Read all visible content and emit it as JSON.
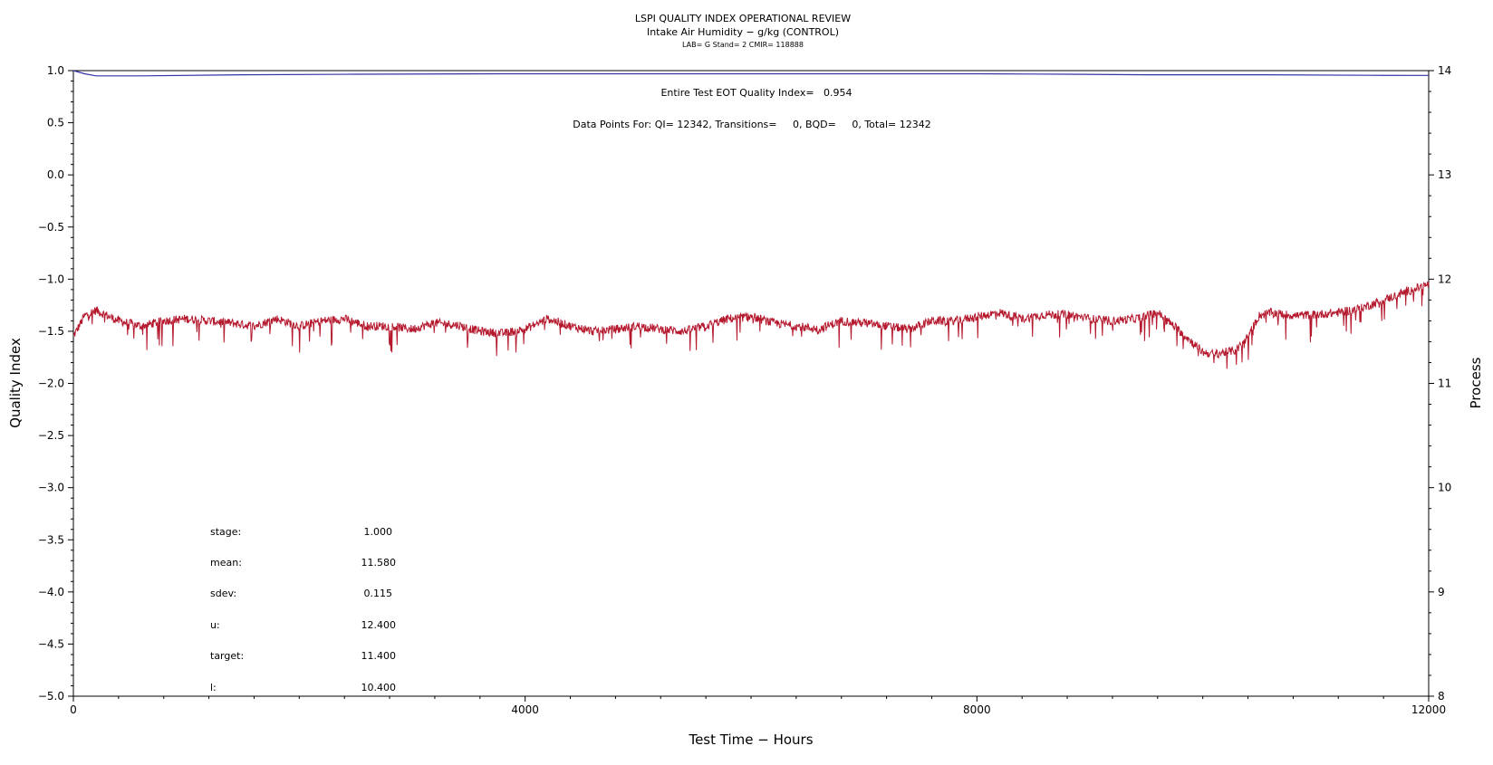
{
  "chart_data": {
    "type": "line",
    "title": "LSPI QUALITY INDEX OPERATIONAL REVIEW",
    "subtitle": "Intake Air Humidity − g/kg (CONTROL)",
    "subtitle2": "LAB= G Stand= 2 CMIR= 118888",
    "xlabel": "Test Time − Hours",
    "ylabel_left": "Quality Index",
    "ylabel_right": "Process",
    "xlim": [
      0,
      12000
    ],
    "ylim_left": [
      -5.0,
      1.0
    ],
    "ylim_right": [
      8,
      14
    ],
    "x_ticks": [
      "0",
      "4000",
      "8000",
      "12000"
    ],
    "y_ticks_left": [
      "1.0",
      "0.5",
      "0.0",
      "−0.5",
      "−1.0",
      "−1.5",
      "−2.0",
      "−2.5",
      "−3.0",
      "−3.5",
      "−4.0",
      "−4.5",
      "−5.0"
    ],
    "y_ticks_right": [
      "14",
      "13",
      "12",
      "11",
      "10",
      "9",
      "8"
    ],
    "annotation_qi": "Entire Test EOT Quality Index=   0.954",
    "annotation_points": "Data Points For: QI= 12342, Transitions=     0, BQD=     0, Total= 12342",
    "stats": [
      {
        "label": "stage:",
        "value": "1.000"
      },
      {
        "label": "mean:",
        "value": "11.580"
      },
      {
        "label": "sdev:",
        "value": "0.115"
      },
      {
        "label": "u:",
        "value": "12.400"
      },
      {
        "label": "target:",
        "value": "11.400"
      },
      {
        "label": "l:",
        "value": "10.400"
      }
    ],
    "series": [
      {
        "axis": "left",
        "color": "#3333aa",
        "x": [
          0,
          100,
          200,
          600,
          1500,
          2500,
          3800,
          5000,
          6000,
          7000,
          8000,
          8800,
          9500,
          10500,
          11500,
          12000
        ],
        "y": [
          1.0,
          0.97,
          0.95,
          0.95,
          0.96,
          0.965,
          0.97,
          0.97,
          0.97,
          0.97,
          0.97,
          0.965,
          0.96,
          0.96,
          0.955,
          0.954
        ]
      },
      {
        "axis": "right",
        "color": "#b5192e",
        "noise": 0.06,
        "x": [
          0,
          100,
          200,
          400,
          600,
          800,
          1000,
          1200,
          1400,
          1600,
          1800,
          2000,
          2200,
          2400,
          2600,
          2800,
          3000,
          3200,
          3400,
          3600,
          3800,
          4000,
          4200,
          4400,
          4600,
          4800,
          5000,
          5200,
          5400,
          5600,
          5800,
          6000,
          6200,
          6400,
          6600,
          6800,
          7000,
          7200,
          7400,
          7600,
          7800,
          8000,
          8200,
          8400,
          8600,
          8800,
          9000,
          9200,
          9400,
          9600,
          9800,
          10000,
          10100,
          10200,
          10300,
          10400,
          10500,
          10600,
          10800,
          11000,
          11200,
          11400,
          11600,
          11800,
          12000
        ],
        "y": [
          11.45,
          11.65,
          11.7,
          11.6,
          11.55,
          11.6,
          11.62,
          11.6,
          11.58,
          11.55,
          11.62,
          11.55,
          11.6,
          11.62,
          11.55,
          11.55,
          11.52,
          11.58,
          11.56,
          11.5,
          11.48,
          11.52,
          11.62,
          11.55,
          11.5,
          11.52,
          11.55,
          11.52,
          11.5,
          11.55,
          11.62,
          11.64,
          11.58,
          11.55,
          11.52,
          11.6,
          11.58,
          11.55,
          11.52,
          11.6,
          11.6,
          11.64,
          11.68,
          11.62,
          11.66,
          11.66,
          11.62,
          11.6,
          11.62,
          11.68,
          11.5,
          11.3,
          11.28,
          11.3,
          11.32,
          11.45,
          11.65,
          11.68,
          11.65,
          11.66,
          11.68,
          11.72,
          11.8,
          11.88,
          11.95
        ]
      }
    ]
  }
}
